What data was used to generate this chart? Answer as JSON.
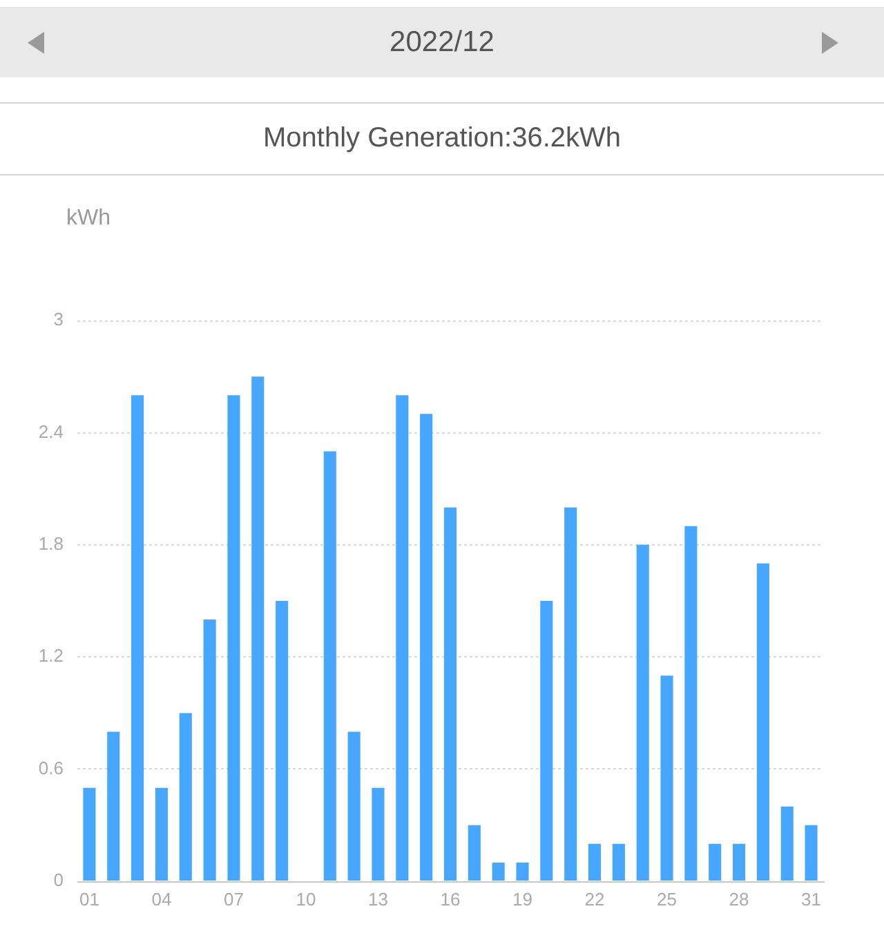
{
  "chart_data": {
    "type": "bar",
    "title": "2022/12",
    "subtitle": "Monthly Generation:36.2kWh",
    "ylabel": "kWh",
    "categories": [
      "01",
      null,
      null,
      "04",
      null,
      null,
      "07",
      null,
      null,
      "10",
      null,
      null,
      "13",
      null,
      null,
      "16",
      null,
      null,
      "19",
      null,
      null,
      "22",
      null,
      null,
      "25",
      null,
      null,
      "28",
      null,
      null,
      "31"
    ],
    "values": [
      0.5,
      0.8,
      2.6,
      0.5,
      0.9,
      1.4,
      2.6,
      2.7,
      1.5,
      0,
      2.3,
      0.8,
      0.5,
      2.6,
      2.5,
      2.0,
      0.3,
      0.1,
      0.1,
      1.5,
      2.0,
      0.2,
      0.2,
      1.8,
      1.1,
      1.9,
      0.2,
      0.2,
      1.7,
      0.4,
      0.3
    ],
    "color": "#47a6ff",
    "ylim": [
      0,
      3
    ],
    "yticks": [
      0,
      0.6,
      1.2,
      1.8,
      2.4,
      3
    ],
    "grid": "y"
  }
}
